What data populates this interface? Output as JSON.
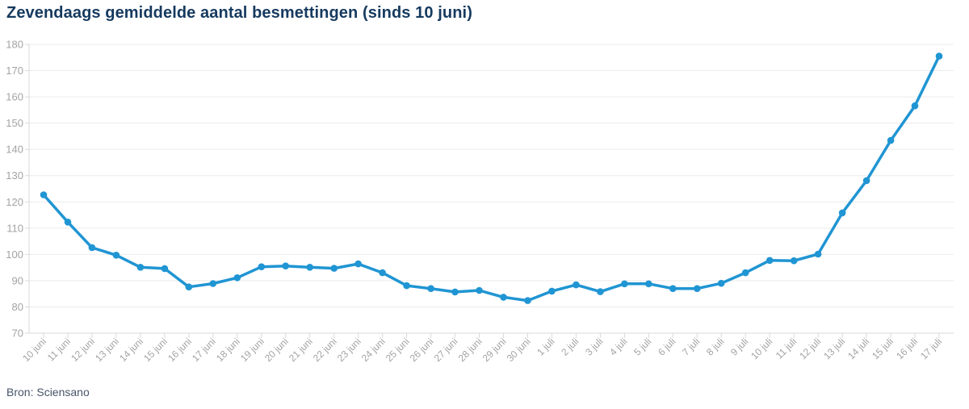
{
  "page": {
    "title": "Zevendaags gemiddelde aantal besmettingen (sinds 10 juni)",
    "source": "Bron: Sciensano"
  },
  "colors": {
    "title": "#163a5f",
    "source_text": "#475569",
    "line": "#2095d3",
    "grid": "#ebebeb",
    "axis": "#d9d9d9",
    "tick_label": "#a3a3a3",
    "background": "#ffffff"
  },
  "chart_data": {
    "type": "line",
    "title": "Zevendaags gemiddelde aantal besmettingen (sinds 10 juni)",
    "source": "Bron: Sciensano",
    "categories": [
      "10 juni",
      "11 juni",
      "12 juni",
      "13 juni",
      "14 juni",
      "15 juni",
      "16 juni",
      "17 juni",
      "18 juni",
      "19 juni",
      "20 juni",
      "21 juni",
      "22 juni",
      "23 juni",
      "24 juni",
      "25 juni",
      "26 juni",
      "27 juni",
      "28 juni",
      "29 juni",
      "30 juni",
      "1 juli",
      "2 juli",
      "3 juli",
      "4 juli",
      "5 juli",
      "6 juli",
      "7 juli",
      "8 juli",
      "9 juli",
      "10 juli",
      "11 juli",
      "12 juli",
      "13 juli",
      "14 juli",
      "15 juli",
      "16 juli",
      "17 juli"
    ],
    "values": [
      122.7,
      112.3,
      102.6,
      99.7,
      95.1,
      94.6,
      87.6,
      88.9,
      91.1,
      95.3,
      95.6,
      95.1,
      94.7,
      96.4,
      93.0,
      88.1,
      87.0,
      85.7,
      86.3,
      83.7,
      82.4,
      86.0,
      88.4,
      85.8,
      88.8,
      88.8,
      87.0,
      87.0,
      89.0,
      93.0,
      97.7,
      97.6,
      100.1,
      115.8,
      128.1,
      143.4,
      156.6,
      175.5
    ],
    "xlabel": "",
    "ylabel": "",
    "ylim": [
      70,
      180
    ],
    "yticks": [
      70,
      80,
      90,
      100,
      110,
      120,
      130,
      140,
      150,
      160,
      170,
      180
    ],
    "grid": true,
    "legend": false,
    "marker": "circle",
    "x_label_rotation": -45
  }
}
